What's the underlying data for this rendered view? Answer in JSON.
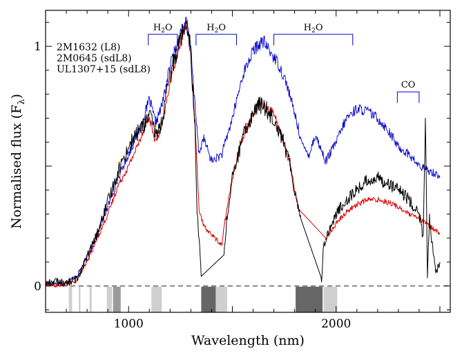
{
  "chart_data": {
    "type": "line",
    "xlabel": "Wavelength (nm)",
    "ylabel": "Normalised flux  (F",
    "ylabel_sub": "λ",
    "ylabel_close": ")",
    "xlim": [
      600,
      2550
    ],
    "ylim": [
      -0.11,
      1.15
    ],
    "x_ticks": [
      1000,
      2000
    ],
    "x_tick_labels": [
      "1000",
      "2000"
    ],
    "y_ticks": [
      0,
      1
    ],
    "y_tick_labels": [
      "0",
      "1"
    ],
    "zero_line": {
      "y": 0,
      "style": "dashed",
      "color": "#666666"
    },
    "legend_position": "top-left",
    "series": [
      {
        "name": "2M1632 (L8)",
        "color": "#0000cc",
        "x": [
          600,
          650,
          700,
          750,
          800,
          850,
          900,
          950,
          1000,
          1050,
          1080,
          1100,
          1130,
          1160,
          1200,
          1230,
          1260,
          1280,
          1300,
          1320,
          1340,
          1360,
          1400,
          1450,
          1500,
          1550,
          1600,
          1630,
          1650,
          1680,
          1720,
          1760,
          1800,
          1840,
          1870,
          1900,
          1950,
          2000,
          2050,
          2100,
          2150,
          2200,
          2250,
          2300,
          2350,
          2400,
          2450,
          2500
        ],
        "y": [
          0.01,
          0.01,
          0.02,
          0.04,
          0.12,
          0.22,
          0.33,
          0.45,
          0.55,
          0.65,
          0.72,
          0.78,
          0.68,
          0.75,
          0.92,
          1.0,
          1.08,
          1.1,
          1.0,
          0.75,
          0.55,
          0.62,
          0.52,
          0.55,
          0.7,
          0.88,
          0.98,
          1.01,
          1.02,
          0.98,
          0.93,
          0.85,
          0.72,
          0.58,
          0.55,
          0.63,
          0.52,
          0.6,
          0.7,
          0.74,
          0.73,
          0.7,
          0.65,
          0.58,
          0.55,
          0.5,
          0.48,
          0.46
        ]
      },
      {
        "name": "2M0645 (sdL8)",
        "color": "#e00000",
        "x": [
          600,
          650,
          700,
          750,
          800,
          850,
          900,
          950,
          1000,
          1050,
          1080,
          1100,
          1130,
          1160,
          1200,
          1230,
          1260,
          1280,
          1300,
          1320,
          1340,
          1360,
          1450,
          1460,
          1500,
          1550,
          1600,
          1630,
          1660,
          1700,
          1740,
          1780,
          1800,
          1820,
          1950,
          1970,
          2000,
          2050,
          2100,
          2150,
          2200,
          2250,
          2300,
          2350,
          2400,
          2450,
          2500
        ],
        "y": [
          0.01,
          0.0,
          0.01,
          0.02,
          0.1,
          0.2,
          0.3,
          0.42,
          0.5,
          0.6,
          0.67,
          0.7,
          0.6,
          0.66,
          0.85,
          0.95,
          1.05,
          1.09,
          0.95,
          0.68,
          0.32,
          0.25,
          0.17,
          0.25,
          0.45,
          0.62,
          0.72,
          0.77,
          0.75,
          0.72,
          0.62,
          0.5,
          0.4,
          0.32,
          0.2,
          0.22,
          0.26,
          0.31,
          0.34,
          0.36,
          0.36,
          0.35,
          0.33,
          0.3,
          0.28,
          0.25,
          0.22
        ]
      },
      {
        "name": "UL1307+15 (sdL8)",
        "color": "#000000",
        "x": [
          600,
          650,
          700,
          750,
          800,
          850,
          900,
          950,
          1000,
          1050,
          1080,
          1100,
          1130,
          1160,
          1200,
          1230,
          1260,
          1280,
          1300,
          1320,
          1330,
          1340,
          1350,
          1460,
          1470,
          1500,
          1550,
          1600,
          1630,
          1660,
          1700,
          1740,
          1780,
          1800,
          1830,
          1930,
          1940,
          1960,
          2000,
          2050,
          2100,
          2150,
          2200,
          2250,
          2300,
          2350,
          2400,
          2420,
          2430,
          2440,
          2450,
          2460,
          2480,
          2500
        ],
        "y": [
          0.01,
          0.02,
          0.01,
          0.03,
          0.12,
          0.22,
          0.35,
          0.48,
          0.58,
          0.65,
          0.68,
          0.72,
          0.63,
          0.68,
          0.88,
          0.98,
          1.06,
          1.12,
          0.97,
          0.65,
          0.3,
          0.2,
          0.04,
          0.13,
          0.25,
          0.45,
          0.62,
          0.72,
          0.76,
          0.74,
          0.7,
          0.62,
          0.5,
          0.4,
          0.28,
          0.03,
          0.17,
          0.22,
          0.3,
          0.36,
          0.4,
          0.44,
          0.45,
          0.43,
          0.4,
          0.36,
          0.3,
          0.2,
          0.7,
          0.05,
          0.28,
          0.2,
          0.05,
          0.1
        ]
      }
    ],
    "annotations": [
      {
        "text": "H",
        "sub": "2",
        "tail": "O",
        "bracket": [
          1095,
          1235
        ],
        "y": 1.05
      },
      {
        "text": "H",
        "sub": "2",
        "tail": "O",
        "bracket": [
          1325,
          1520
        ],
        "y": 1.05
      },
      {
        "text": "H",
        "sub": "2",
        "tail": "O",
        "bracket": [
          1700,
          2080
        ],
        "y": 1.05
      },
      {
        "text": "CO",
        "bracket": [
          2295,
          2400
        ],
        "y": 0.81
      }
    ],
    "telluric_bands": [
      {
        "from": 712,
        "to": 728,
        "shade": "light"
      },
      {
        "from": 760,
        "to": 768,
        "shade": "light"
      },
      {
        "from": 812,
        "to": 822,
        "shade": "light"
      },
      {
        "from": 895,
        "to": 920,
        "shade": "light"
      },
      {
        "from": 925,
        "to": 962,
        "shade": "medium"
      },
      {
        "from": 1110,
        "to": 1160,
        "shade": "light"
      },
      {
        "from": 1350,
        "to": 1420,
        "shade": "dark"
      },
      {
        "from": 1420,
        "to": 1475,
        "shade": "light"
      },
      {
        "from": 1805,
        "to": 1935,
        "shade": "dark"
      },
      {
        "from": 1940,
        "to": 2005,
        "shade": "light"
      }
    ],
    "band_colors": {
      "light": "#cfcfcf",
      "medium": "#9a9a9a",
      "dark": "#666666"
    }
  }
}
